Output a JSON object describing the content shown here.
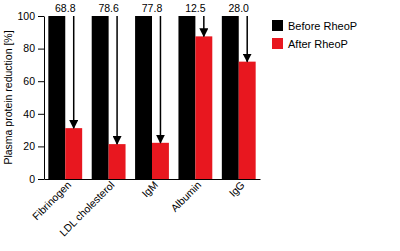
{
  "chart_data": {
    "type": "bar",
    "y_label": "Plasma protein reduction [%]",
    "categories": [
      "Fibrinogen",
      "LDL cholesterol",
      "IgM",
      "Albumin",
      "IgG"
    ],
    "series": [
      {
        "name": "Before RheoP",
        "color": "#000000",
        "values": [
          100,
          100,
          100,
          100,
          100
        ]
      },
      {
        "name": "After RheoP",
        "color": "#e8171f",
        "values": [
          31.2,
          21.4,
          22.2,
          87.5,
          72.0
        ]
      }
    ],
    "reduction_values": [
      68.8,
      78.6,
      77.8,
      12.5,
      28.0
    ],
    "reduction_labels": [
      "68.8",
      "78.6",
      "77.8",
      "12.5",
      "28.0"
    ],
    "ylim": [
      0,
      100
    ],
    "yticks": [
      0,
      20,
      40,
      60,
      80,
      100
    ],
    "grid": false,
    "legend": "right"
  }
}
